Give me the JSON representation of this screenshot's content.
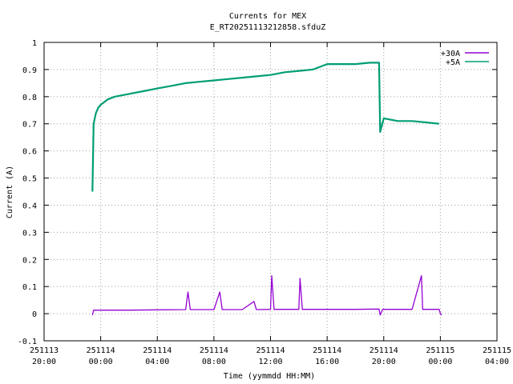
{
  "chart_data": {
    "type": "line",
    "title": "Currents for MEX",
    "subtitle": "E_RT20251113212858.sfduZ",
    "xlabel": "Time (yymmdd HH:MM)",
    "ylabel": "Current (A)",
    "xlim_hours": [
      -4,
      28
    ],
    "ylim": [
      -0.1,
      1.0
    ],
    "grid": true,
    "legend_position": "top-right",
    "y_ticks": [
      "-0.1",
      "0",
      "0.1",
      "0.2",
      "0.3",
      "0.4",
      "0.5",
      "0.6",
      "0.7",
      "0.8",
      "0.9",
      "1"
    ],
    "x_ticks": [
      {
        "date": "251113",
        "time": "20:00"
      },
      {
        "date": "251114",
        "time": "00:00"
      },
      {
        "date": "251114",
        "time": "04:00"
      },
      {
        "date": "251114",
        "time": "08:00"
      },
      {
        "date": "251114",
        "time": "12:00"
      },
      {
        "date": "251114",
        "time": "16:00"
      },
      {
        "date": "251114",
        "time": "20:00"
      },
      {
        "date": "251115",
        "time": "00:00"
      },
      {
        "date": "251115",
        "time": "04:00"
      }
    ],
    "series": [
      {
        "name": "+30A",
        "color": "#9400d3",
        "x_time": [
          "251113 23:25",
          "251113 23:30",
          "251114 00:00",
          "251114 02:00",
          "251114 04:00",
          "251114 06:00",
          "251114 06:10",
          "251114 06:20",
          "251114 08:00",
          "251114 08:25",
          "251114 08:35",
          "251114 10:00",
          "251114 10:50",
          "251114 11:00",
          "251114 12:00",
          "251114 12:05",
          "251114 12:15",
          "251114 14:00",
          "251114 14:05",
          "251114 14:15",
          "251114 16:00",
          "251114 18:00",
          "251114 19:40",
          "251114 19:45",
          "251114 19:55",
          "251114 22:00",
          "251114 22:40",
          "251114 22:45",
          "251114 22:55",
          "251114 23:55",
          "251115 00:00",
          "251115 00:05"
        ],
        "values": [
          -0.005,
          0.013,
          0.013,
          0.013,
          0.014,
          0.015,
          0.08,
          0.015,
          0.015,
          0.08,
          0.015,
          0.015,
          0.045,
          0.015,
          0.016,
          0.14,
          0.016,
          0.016,
          0.13,
          0.016,
          0.016,
          0.016,
          0.017,
          -0.005,
          0.016,
          0.016,
          0.14,
          0.016,
          0.016,
          0.016,
          0.0,
          -0.005
        ]
      },
      {
        "name": "+5A",
        "color": "#009e73",
        "x_time": [
          "251113 23:25",
          "251113 23:30",
          "251113 23:40",
          "251113 23:50",
          "251114 00:00",
          "251114 00:30",
          "251114 01:00",
          "251114 02:00",
          "251114 03:00",
          "251114 04:00",
          "251114 05:00",
          "251114 06:00",
          "251114 07:00",
          "251114 08:00",
          "251114 09:00",
          "251114 10:00",
          "251114 11:00",
          "251114 12:00",
          "251114 13:00",
          "251114 14:00",
          "251114 15:00",
          "251114 16:00",
          "251114 17:00",
          "251114 18:00",
          "251114 19:00",
          "251114 19:40",
          "251114 19:45",
          "251114 20:00",
          "251114 21:00",
          "251114 22:00",
          "251114 23:00",
          "251114 23:55"
        ],
        "values": [
          0.45,
          0.7,
          0.74,
          0.76,
          0.77,
          0.79,
          0.8,
          0.81,
          0.82,
          0.83,
          0.84,
          0.85,
          0.855,
          0.86,
          0.865,
          0.87,
          0.875,
          0.88,
          0.89,
          0.895,
          0.9,
          0.92,
          0.92,
          0.92,
          0.925,
          0.925,
          0.67,
          0.72,
          0.71,
          0.71,
          0.705,
          0.7
        ]
      }
    ]
  }
}
